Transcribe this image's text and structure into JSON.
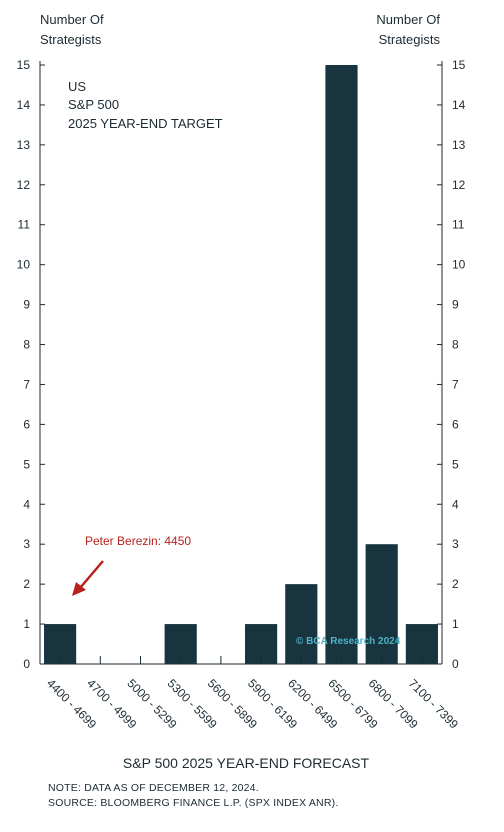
{
  "chart_data": {
    "type": "bar",
    "title_lines": [
      "US",
      "S&P 500",
      "2025 YEAR-END TARGET"
    ],
    "left_axis_title": [
      "Number Of",
      "Strategists"
    ],
    "right_axis_title": [
      "Number Of",
      "Strategists"
    ],
    "xlabel": "S&P 500 2025 YEAR-END FORECAST",
    "categories": [
      "4400 - 4699",
      "4700 - 4999",
      "5000 - 5299",
      "5300 - 5599",
      "5600 - 5899",
      "5900 - 6199",
      "6200 - 6499",
      "6500 - 6799",
      "6800 - 7099",
      "7100 - 7399"
    ],
    "series": [
      {
        "values": [
          1,
          0,
          0,
          1,
          0,
          1,
          2,
          15,
          3,
          1
        ]
      }
    ],
    "ylim": [
      0,
      15
    ],
    "yticks": [
      0,
      1,
      2,
      3,
      4,
      5,
      6,
      7,
      8,
      9,
      10,
      11,
      12,
      13,
      14,
      15
    ],
    "grid": false,
    "bar_color": "#17343f",
    "annotation": {
      "text": "Peter Berezin: 4450",
      "category": "4400 - 4699",
      "color": "#b8211d"
    },
    "watermark": "© BCA Research 2024",
    "notes": [
      "NOTE: DATA AS OF DECEMBER 12, 2024.",
      "SOURCE: BLOOMBERG FINANCE L.P. (SPX INDEX ANR)."
    ]
  }
}
